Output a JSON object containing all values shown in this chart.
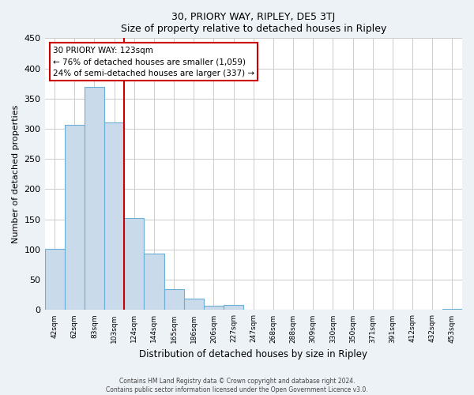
{
  "title": "30, PRIORY WAY, RIPLEY, DE5 3TJ",
  "subtitle": "Size of property relative to detached houses in Ripley",
  "xlabel": "Distribution of detached houses by size in Ripley",
  "ylabel": "Number of detached properties",
  "bar_labels": [
    "42sqm",
    "62sqm",
    "83sqm",
    "103sqm",
    "124sqm",
    "144sqm",
    "165sqm",
    "186sqm",
    "206sqm",
    "227sqm",
    "247sqm",
    "268sqm",
    "288sqm",
    "309sqm",
    "330sqm",
    "350sqm",
    "371sqm",
    "391sqm",
    "412sqm",
    "432sqm",
    "453sqm"
  ],
  "bar_values": [
    101,
    307,
    369,
    310,
    152,
    93,
    35,
    19,
    7,
    9,
    1,
    0,
    0,
    0,
    0,
    0,
    0,
    0,
    0,
    0,
    2
  ],
  "bar_color": "#c9daea",
  "bar_edge_color": "#6baed6",
  "vline_color": "#cc0000",
  "annotation_title": "30 PRIORY WAY: 123sqm",
  "annotation_line1": "← 76% of detached houses are smaller (1,059)",
  "annotation_line2": "24% of semi-detached houses are larger (337) →",
  "annotation_box_color": "#ffffff",
  "annotation_box_edge": "#cc0000",
  "footer1": "Contains HM Land Registry data © Crown copyright and database right 2024.",
  "footer2": "Contains public sector information licensed under the Open Government Licence v3.0.",
  "bg_color": "#edf2f7",
  "plot_bg_color": "#ffffff",
  "ylim": [
    0,
    450
  ],
  "yticks": [
    0,
    50,
    100,
    150,
    200,
    250,
    300,
    350,
    400,
    450
  ],
  "vline_index": 3.5
}
